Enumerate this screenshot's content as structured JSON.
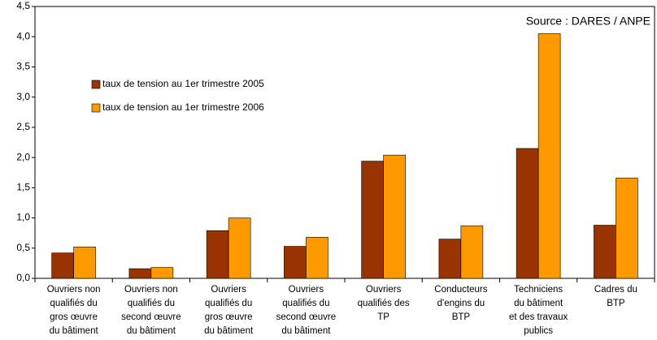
{
  "chart_data": {
    "type": "bar",
    "annotation": "Source : DARES / ANPE",
    "categories": [
      [
        "Ouvriers non",
        "qualifiés du",
        "gros œuvre",
        "du bâtiment"
      ],
      [
        "Ouvriers non",
        "qualifiés du",
        "second œuvre",
        "du bâtiment"
      ],
      [
        "Ouvriers",
        "qualifiés du",
        "gros œuvre",
        "du bâtiment"
      ],
      [
        "Ouvriers",
        "qualifiés du",
        "second œuvre",
        "du bâtiment"
      ],
      [
        "Ouvriers",
        "qualifiés des",
        "TP"
      ],
      [
        "Conducteurs",
        "d'engins du",
        "BTP"
      ],
      [
        "Techniciens",
        "du bâtiment",
        "et des travaux",
        "publics"
      ],
      [
        "Cadres du",
        "BTP"
      ]
    ],
    "series": [
      {
        "name": "taux de tension au 1er trimestre 2005",
        "color": "#993300",
        "values": [
          0.42,
          0.16,
          0.79,
          0.53,
          1.94,
          0.65,
          2.15,
          0.88
        ]
      },
      {
        "name": "taux de tension au 1er trimestre 2006",
        "color": "#ff9900",
        "values": [
          0.52,
          0.18,
          1.0,
          0.68,
          2.04,
          0.87,
          4.05,
          1.66
        ]
      }
    ],
    "ylim": [
      0,
      4.5
    ],
    "yticks": [
      {
        "value": 0,
        "label": "0,0"
      },
      {
        "value": 0.5,
        "label": "0,5"
      },
      {
        "value": 1,
        "label": "1,0"
      },
      {
        "value": 1.5,
        "label": "1,5"
      },
      {
        "value": 2,
        "label": "2,0"
      },
      {
        "value": 2.5,
        "label": "2,5"
      },
      {
        "value": 3,
        "label": "3,0"
      },
      {
        "value": 3.5,
        "label": "3,5"
      },
      {
        "value": 4,
        "label": "4,0"
      },
      {
        "value": 4.5,
        "label": "4,5"
      }
    ],
    "grid": false,
    "legend": "upper-left"
  }
}
